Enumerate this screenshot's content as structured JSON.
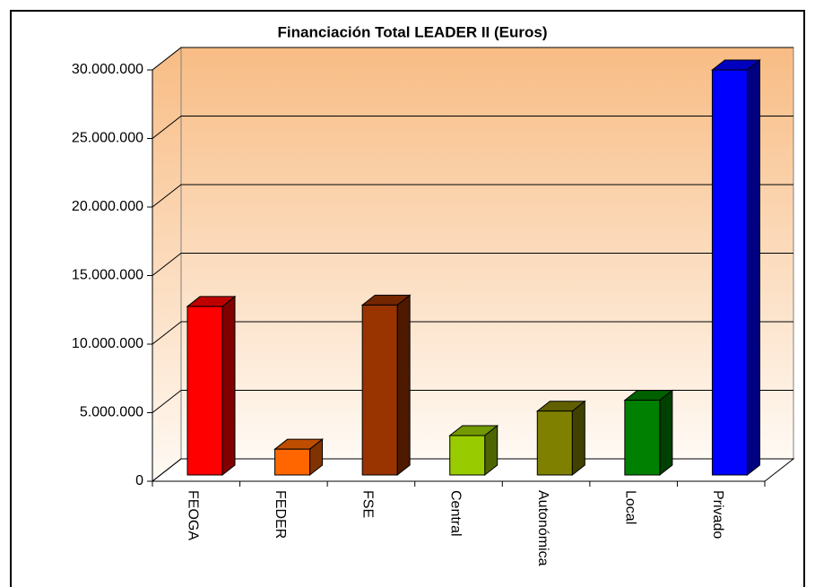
{
  "chart_data": {
    "type": "bar3d",
    "title": "Financiación Total LEADER II (Euros)",
    "categories": [
      "FEOGA",
      "FEDER",
      "FSE",
      "Central",
      "Autonómica",
      "Local",
      "Privado"
    ],
    "values": [
      12400000,
      1900000,
      12500000,
      2900000,
      4700000,
      5500000,
      29800000
    ],
    "colors": [
      "#ff0000",
      "#ff6600",
      "#993300",
      "#99cc00",
      "#808000",
      "#008000",
      "#0000ff"
    ],
    "ylim": [
      0,
      30000000
    ],
    "yticks": [
      {
        "value": 0,
        "label": "0"
      },
      {
        "value": 5000000,
        "label": "5.000.000"
      },
      {
        "value": 10000000,
        "label": "10.000.000"
      },
      {
        "value": 15000000,
        "label": "15.000.000"
      },
      {
        "value": 20000000,
        "label": "20.000.000"
      },
      {
        "value": 25000000,
        "label": "25.000.000"
      },
      {
        "value": 30000000,
        "label": "30.000.000"
      }
    ],
    "grid": true
  }
}
